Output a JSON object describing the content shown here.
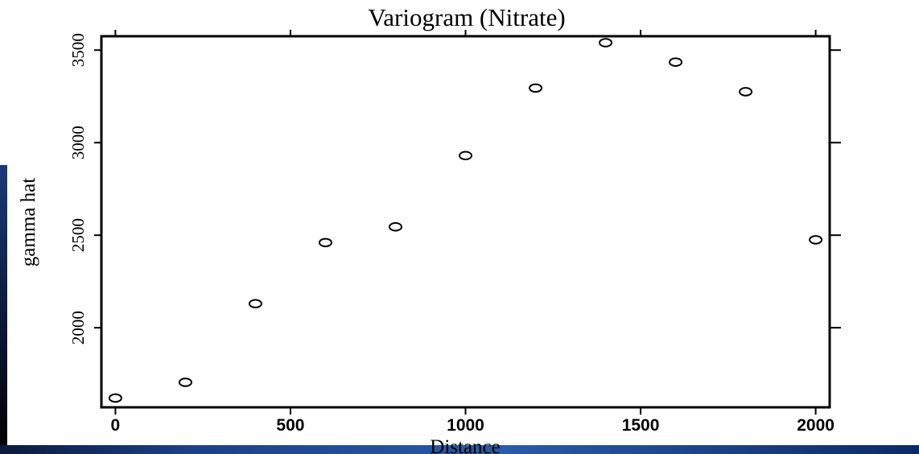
{
  "chart_data": {
    "type": "scatter",
    "title": "Variogram (Nitrate)",
    "xlabel": "Distance",
    "ylabel": "gamma hat",
    "xlim": [
      -40,
      2040
    ],
    "ylim": [
      1570,
      3575
    ],
    "x_ticks": [
      "0",
      "500",
      "1000",
      "1500",
      "2000"
    ],
    "y_ticks": [
      "2000",
      "2500",
      "3000",
      "3500"
    ],
    "grid": false,
    "marker": "open-circle",
    "points": [
      {
        "x": 0,
        "y": 1620
      },
      {
        "x": 200,
        "y": 1705
      },
      {
        "x": 400,
        "y": 2130
      },
      {
        "x": 600,
        "y": 2460
      },
      {
        "x": 800,
        "y": 2545
      },
      {
        "x": 1000,
        "y": 2930
      },
      {
        "x": 1200,
        "y": 3295
      },
      {
        "x": 1400,
        "y": 3540
      },
      {
        "x": 1600,
        "y": 3435
      },
      {
        "x": 1800,
        "y": 3275
      },
      {
        "x": 2000,
        "y": 2475
      }
    ]
  }
}
